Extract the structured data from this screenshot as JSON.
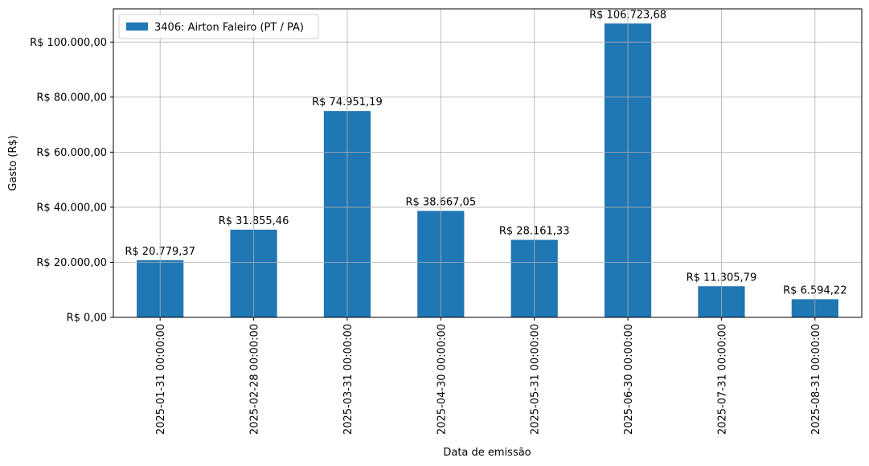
{
  "chart_data": {
    "type": "bar",
    "x_label": "Data de emissão",
    "y_label": "Gasto (R$)",
    "categories": [
      "2025-01-31 00:00:00",
      "2025-02-28 00:00:00",
      "2025-03-31 00:00:00",
      "2025-04-30 00:00:00",
      "2025-05-31 00:00:00",
      "2025-06-30 00:00:00",
      "2025-07-31 00:00:00",
      "2025-08-31 00:00:00"
    ],
    "series": [
      {
        "name": "3406: Airton Faleiro (PT / PA)",
        "color": "#1f77b4",
        "values": [
          20779.37,
          31855.46,
          74951.19,
          38667.05,
          28161.33,
          106723.68,
          11305.79,
          6594.22
        ],
        "value_labels": [
          "R$ 20.779,37",
          "R$ 31.855,46",
          "R$ 74.951,19",
          "R$ 38.667,05",
          "R$ 28.161,33",
          "R$ 106.723,68",
          "R$ 11.305,79",
          "R$ 6.594,22"
        ]
      }
    ],
    "ylim": [
      0,
      112059.86
    ],
    "yticks": [
      {
        "value": 0,
        "label": "R$ 0,00"
      },
      {
        "value": 20000,
        "label": "R$ 20.000,00"
      },
      {
        "value": 40000,
        "label": "R$ 40.000,00"
      },
      {
        "value": 60000,
        "label": "R$ 60.000,00"
      },
      {
        "value": 80000,
        "label": "R$ 80.000,00"
      },
      {
        "value": 100000,
        "label": "R$ 100.000,00"
      }
    ],
    "grid": true,
    "legend": "upper-left"
  }
}
